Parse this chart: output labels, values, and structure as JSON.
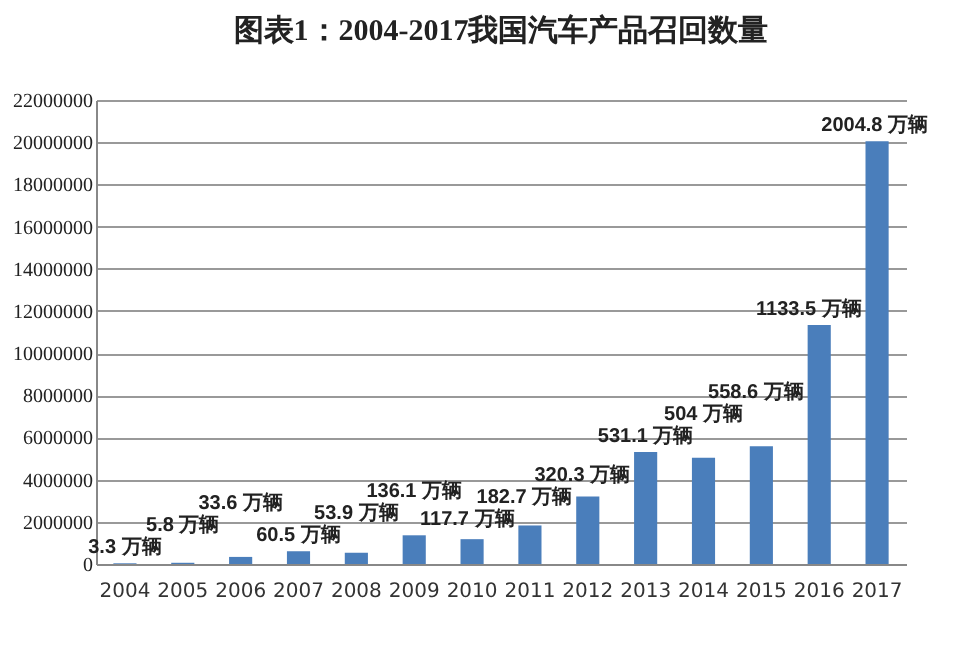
{
  "chart_data": {
    "type": "bar",
    "title": "图表1：2004-2017我国汽车产品召回数量",
    "categories": [
      "2004",
      "2005",
      "2006",
      "2007",
      "2008",
      "2009",
      "2010",
      "2011",
      "2012",
      "2013",
      "2014",
      "2015",
      "2016",
      "2017"
    ],
    "values": [
      33000,
      58000,
      336000,
      605000,
      539000,
      1361000,
      1177000,
      1827000,
      3203000,
      5311000,
      5040000,
      5586000,
      11335000,
      20048000
    ],
    "annotations": [
      {
        "text": "3.3 万辆",
        "x": "2004",
        "y": 33000
      },
      {
        "text": "5.8 万辆",
        "x": "2005",
        "y": 58000
      },
      {
        "text": "33.6 万辆",
        "x": "2006",
        "y": 336000
      },
      {
        "text": "60.5 万辆",
        "x": "2007",
        "y": 605000
      },
      {
        "text": "53.9 万辆",
        "x": "2008",
        "y": 539000
      },
      {
        "text": "136.1 万辆",
        "x": "2009",
        "y": 1361000
      },
      {
        "text": "117.7 万辆",
        "x": "2010",
        "y": 1177000
      },
      {
        "text": "182.7 万辆",
        "x": "2011",
        "y": 1827000
      },
      {
        "text": "320.3 万辆",
        "x": "2012",
        "y": 3203000
      },
      {
        "text": "531.1 万辆",
        "x": "2013",
        "y": 5311000
      },
      {
        "text": "504 万辆",
        "x": "2014",
        "y": 5040000
      },
      {
        "text": "558.6 万辆",
        "x": "2015",
        "y": 5586000
      },
      {
        "text": "1133.5 万辆",
        "x": "2016",
        "y": 11335000
      },
      {
        "text": "2004.8 万辆",
        "x": "2017",
        "y": 20048000
      }
    ],
    "color": "#4a7ebb",
    "ylim": [
      0,
      22000000
    ],
    "yticks": [
      0,
      2000000,
      4000000,
      6000000,
      8000000,
      10000000,
      12000000,
      14000000,
      16000000,
      18000000,
      20000000,
      22000000
    ],
    "grid": "y"
  }
}
